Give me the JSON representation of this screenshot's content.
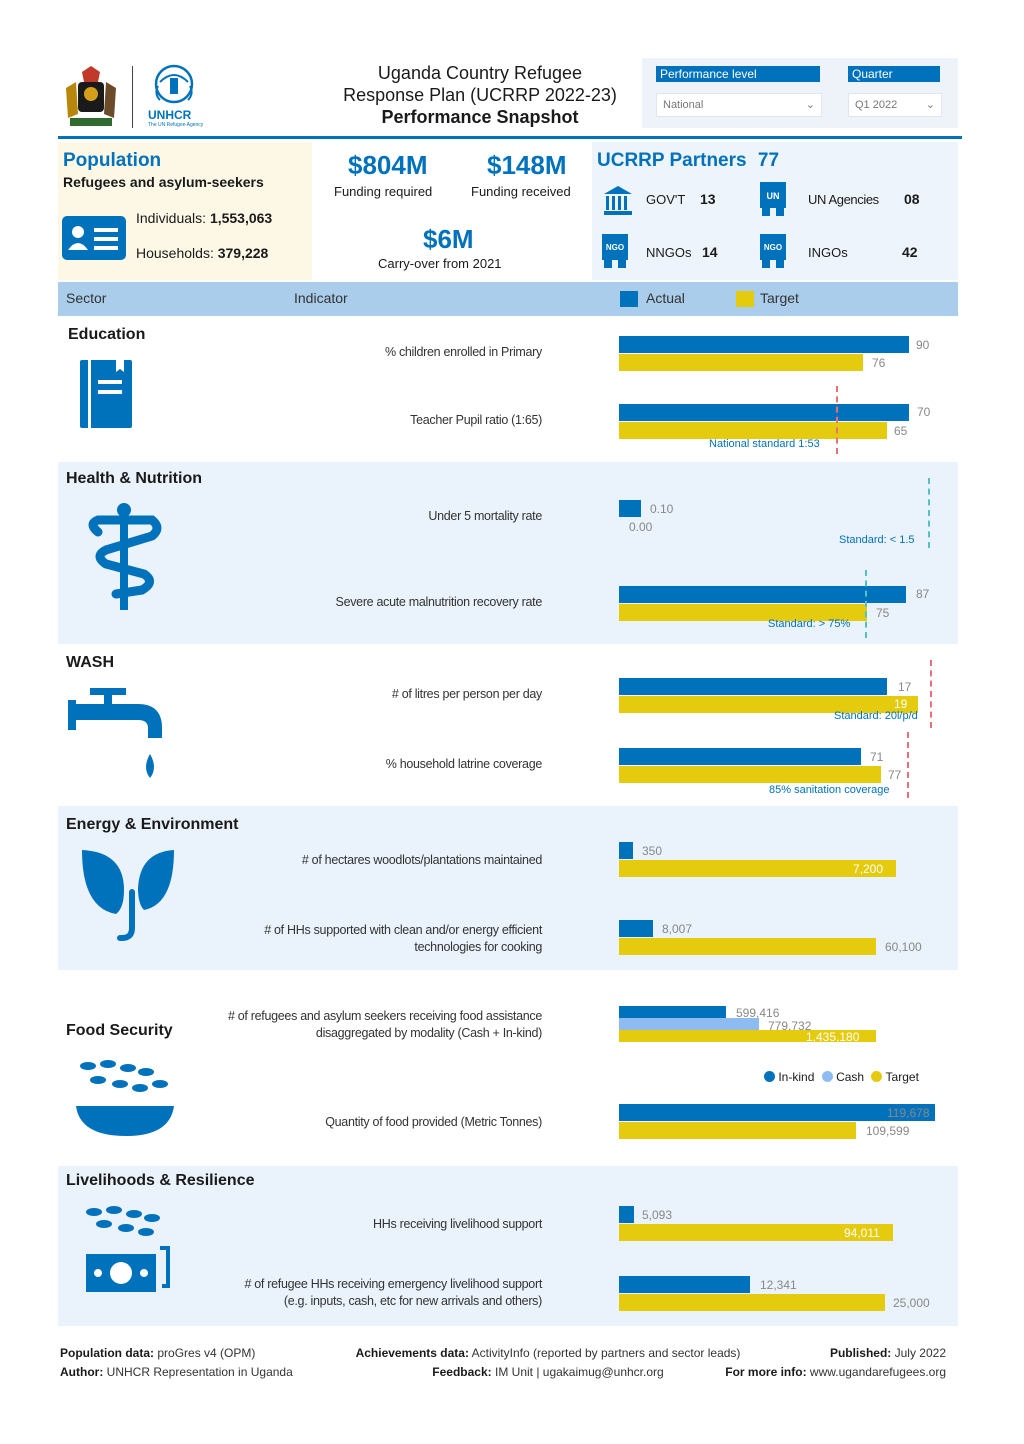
{
  "header": {
    "title_line1": "Uganda Country Refugee",
    "title_line2": "Response Plan (UCRRP 2022-23)",
    "title_line3": "Performance Snapshot",
    "unhcr_logo_text": "UNHCR",
    "unhcr_logo_sub": "The UN Refugee Agency",
    "performance_level_label": "Performance level",
    "performance_level_value": "National",
    "quarter_label": "Quarter",
    "quarter_value": "Q1 2022"
  },
  "population": {
    "title": "Population",
    "subtitle": "Refugees and asylum-seekers",
    "individuals_label": "Individuals:",
    "individuals_value": "1,553,063",
    "households_label": "Households:",
    "households_value": "379,228"
  },
  "funding": {
    "required_value": "$804M",
    "required_label": "Funding required",
    "received_value": "$148M",
    "received_label": "Funding received",
    "carryover_value": "$6M",
    "carryover_label": "Carry-over from 2021"
  },
  "partners": {
    "title": "UCRRP Partners",
    "total": "77",
    "items": [
      {
        "label": "GOV'T",
        "value": "13",
        "icon": "government-building-icon"
      },
      {
        "label": "UN Agencies",
        "value": "08",
        "icon": "un-agency-icon"
      },
      {
        "label": "NNGOs",
        "value": "14",
        "icon": "nngo-icon"
      },
      {
        "label": "INGOs",
        "value": "42",
        "icon": "ingo-icon"
      }
    ],
    "icon_text": {
      "un": "UN",
      "nngo": "NGO",
      "ingo": "NGO"
    }
  },
  "table_header": {
    "sector": "Sector",
    "indicator": "Indicator",
    "actual": "Actual",
    "target": "Target"
  },
  "colors": {
    "actual": "#0072bc",
    "target": "#e5cb0d",
    "cash": "#8ebcf0",
    "band_light": "#eaf2fb",
    "standard_red": "#e8707c",
    "standard_teal": "#52c2c7"
  },
  "sectors": {
    "education": {
      "title": "Education",
      "ind1": "% children enrolled in Primary",
      "ind1_actual": "90",
      "ind1_target": "76",
      "ind2": "Teacher Pupil ratio (1:65)",
      "ind2_actual": "70",
      "ind2_target": "65",
      "ind2_standard": "National standard 1:53"
    },
    "health": {
      "title": "Health & Nutrition",
      "ind1": "Under 5 mortality rate",
      "ind1_actual": "0.10",
      "ind1_target": "0.00",
      "ind1_standard": "Standard: < 1.5",
      "ind2": "Severe acute malnutrition recovery rate",
      "ind2_actual": "87",
      "ind2_target": "75",
      "ind2_standard": "Standard: > 75%"
    },
    "wash": {
      "title": "WASH",
      "ind1": "# of litres per person per day",
      "ind1_actual": "17",
      "ind1_target": "19",
      "ind1_standard": "Standard: 20l/p/d",
      "ind2": "% household latrine coverage",
      "ind2_actual": "71",
      "ind2_target": "77",
      "ind2_standard": "85% sanitation coverage"
    },
    "energy": {
      "title": "Energy & Environment",
      "ind1": "# of hectares woodlots/plantations maintained",
      "ind1_actual": "350",
      "ind1_target": "7,200",
      "ind2_line1": "# of HHs supported with clean and/or energy efficient",
      "ind2_line2": "technologies for cooking",
      "ind2_actual": "8,007",
      "ind2_target": "60,100"
    },
    "food": {
      "title": "Food Security",
      "ind1_line1": "# of refugees and asylum seekers receiving food assistance",
      "ind1_line2": "disaggregated by modality (Cash + In-kind)",
      "ind1_inkind": "599,416",
      "ind1_cash": "779,732",
      "ind1_target": "1,435,180",
      "legend_inkind": "In-kind",
      "legend_cash": "Cash",
      "legend_target": "Target",
      "ind2": "Quantity of food provided (Metric Tonnes)",
      "ind2_actual": "119,678",
      "ind2_target": "109,599"
    },
    "livelihoods": {
      "title": "Livelihoods & Resilience",
      "ind1": "HHs receiving livelihood support",
      "ind1_actual": "5,093",
      "ind1_target": "94,011",
      "ind2_line1": "# of refugee HHs receiving emergency livelihood support",
      "ind2_line2": "(e.g. inputs, cash, etc for new arrivals and others)",
      "ind2_actual": "12,341",
      "ind2_target": "25,000"
    }
  },
  "chart_data": [
    {
      "type": "bar",
      "title": "Education",
      "categories": [
        "% children enrolled in Primary",
        "Teacher Pupil ratio (1:65)"
      ],
      "series": [
        {
          "name": "Actual",
          "values": [
            90,
            70
          ]
        },
        {
          "name": "Target",
          "values": [
            76,
            65
          ]
        }
      ]
    },
    {
      "type": "bar",
      "title": "Health & Nutrition",
      "categories": [
        "Under 5 mortality rate",
        "Severe acute malnutrition recovery rate"
      ],
      "series": [
        {
          "name": "Actual",
          "values": [
            0.1,
            87
          ]
        },
        {
          "name": "Target",
          "values": [
            0.0,
            75
          ]
        }
      ]
    },
    {
      "type": "bar",
      "title": "WASH",
      "categories": [
        "# of litres per person per day",
        "% household latrine coverage"
      ],
      "series": [
        {
          "name": "Actual",
          "values": [
            17,
            71
          ]
        },
        {
          "name": "Target",
          "values": [
            19,
            77
          ]
        }
      ]
    },
    {
      "type": "bar",
      "title": "Energy & Environment",
      "categories": [
        "# of hectares woodlots/plantations maintained",
        "# of HHs supported with clean and/or energy efficient technologies for cooking"
      ],
      "series": [
        {
          "name": "Actual",
          "values": [
            350,
            8007
          ]
        },
        {
          "name": "Target",
          "values": [
            7200,
            60100
          ]
        }
      ]
    },
    {
      "type": "bar",
      "title": "Food Security",
      "categories": [
        "# of refugees and asylum seekers receiving food assistance disaggregated by modality (Cash + In-kind)",
        "Quantity of food provided (Metric Tonnes)"
      ],
      "series": [
        {
          "name": "In-kind",
          "values": [
            599416,
            null
          ]
        },
        {
          "name": "Cash",
          "values": [
            779732,
            null
          ]
        },
        {
          "name": "Actual",
          "values": [
            null,
            119678
          ]
        },
        {
          "name": "Target",
          "values": [
            1435180,
            109599
          ]
        }
      ]
    },
    {
      "type": "bar",
      "title": "Livelihoods & Resilience",
      "categories": [
        "HHs receiving livelihood support",
        "# of refugee HHs receiving emergency livelihood support (e.g. inputs, cash, etc for new arrivals and others)"
      ],
      "series": [
        {
          "name": "Actual",
          "values": [
            5093,
            12341
          ]
        },
        {
          "name": "Target",
          "values": [
            94011,
            25000
          ]
        }
      ]
    }
  ],
  "footer": {
    "pop_data_label": "Population data:",
    "pop_data_value": "proGres v4 (OPM)",
    "author_label": "Author:",
    "author_value": "UNHCR Representation in Uganda",
    "achievements_label": "Achievements data:",
    "achievements_value": "ActivityInfo (reported by partners and sector leads)",
    "feedback_label": "Feedback:",
    "feedback_value": "IM Unit | ugakaimug@unhcr.org",
    "published_label": "Published:",
    "published_value": "July 2022",
    "more_info_label": "For more info:",
    "more_info_value": "www.ugandarefugees.org"
  }
}
